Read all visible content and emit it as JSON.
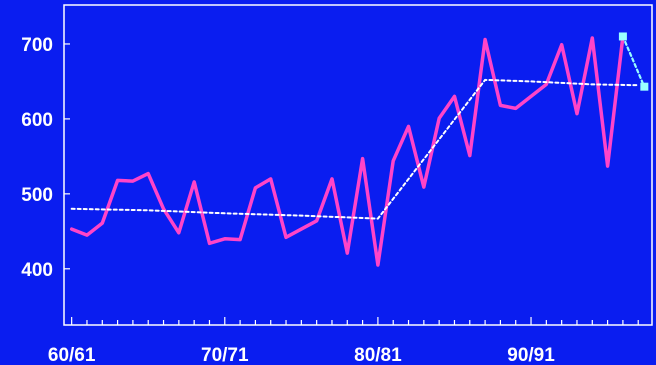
{
  "chart_data": {
    "type": "line",
    "title": "",
    "xlabel": "",
    "ylabel": "",
    "xlim": [
      1959.5,
      1997.9
    ],
    "ylim": [
      325,
      752
    ],
    "grid": false,
    "legend": "none",
    "x_tick_values": [
      1960,
      1970,
      1980,
      1990
    ],
    "x_tick_labels": [
      "60/61",
      "70/71",
      "80/81",
      "90/91"
    ],
    "y_tick_values": [
      400,
      500,
      600,
      700
    ],
    "y_tick_labels": [
      "400",
      "500",
      "600",
      "700"
    ],
    "colors": {
      "background": "#0a1df0",
      "axes": "#ffffff",
      "series_main": "#ff44c8",
      "series_trend": "#ffffff",
      "series_forecast": "#99ffff"
    },
    "series": [
      {
        "name": "",
        "style": "solid",
        "x": [
          1960,
          1961,
          1962,
          1963,
          1964,
          1965,
          1966,
          1967,
          1968,
          1969,
          1970,
          1971,
          1972,
          1973,
          1974,
          1975,
          1976,
          1977,
          1978,
          1979,
          1980,
          1981,
          1982,
          1983,
          1984,
          1985,
          1986,
          1987,
          1988,
          1989,
          1990,
          1991,
          1992,
          1993,
          1994,
          1995,
          1996
        ],
        "y": [
          453,
          445,
          461,
          518,
          517,
          527,
          480,
          448,
          516,
          434,
          440,
          439,
          508,
          520,
          442,
          453,
          464,
          520,
          421,
          547,
          405,
          544,
          590,
          509,
          601,
          630,
          551,
          706,
          618,
          614,
          630,
          646,
          699,
          607,
          708,
          537,
          710
        ]
      },
      {
        "name": "",
        "style": "dotted",
        "x": [
          1960,
          1965,
          1970,
          1975,
          1980,
          1987,
          1990,
          1994,
          1997
        ],
        "y": [
          480,
          478,
          474,
          471,
          467,
          652,
          650,
          646,
          645
        ]
      },
      {
        "name": "",
        "style": "dotted-markers",
        "x": [
          1996,
          1997.4
        ],
        "y": [
          710,
          643
        ]
      }
    ]
  }
}
